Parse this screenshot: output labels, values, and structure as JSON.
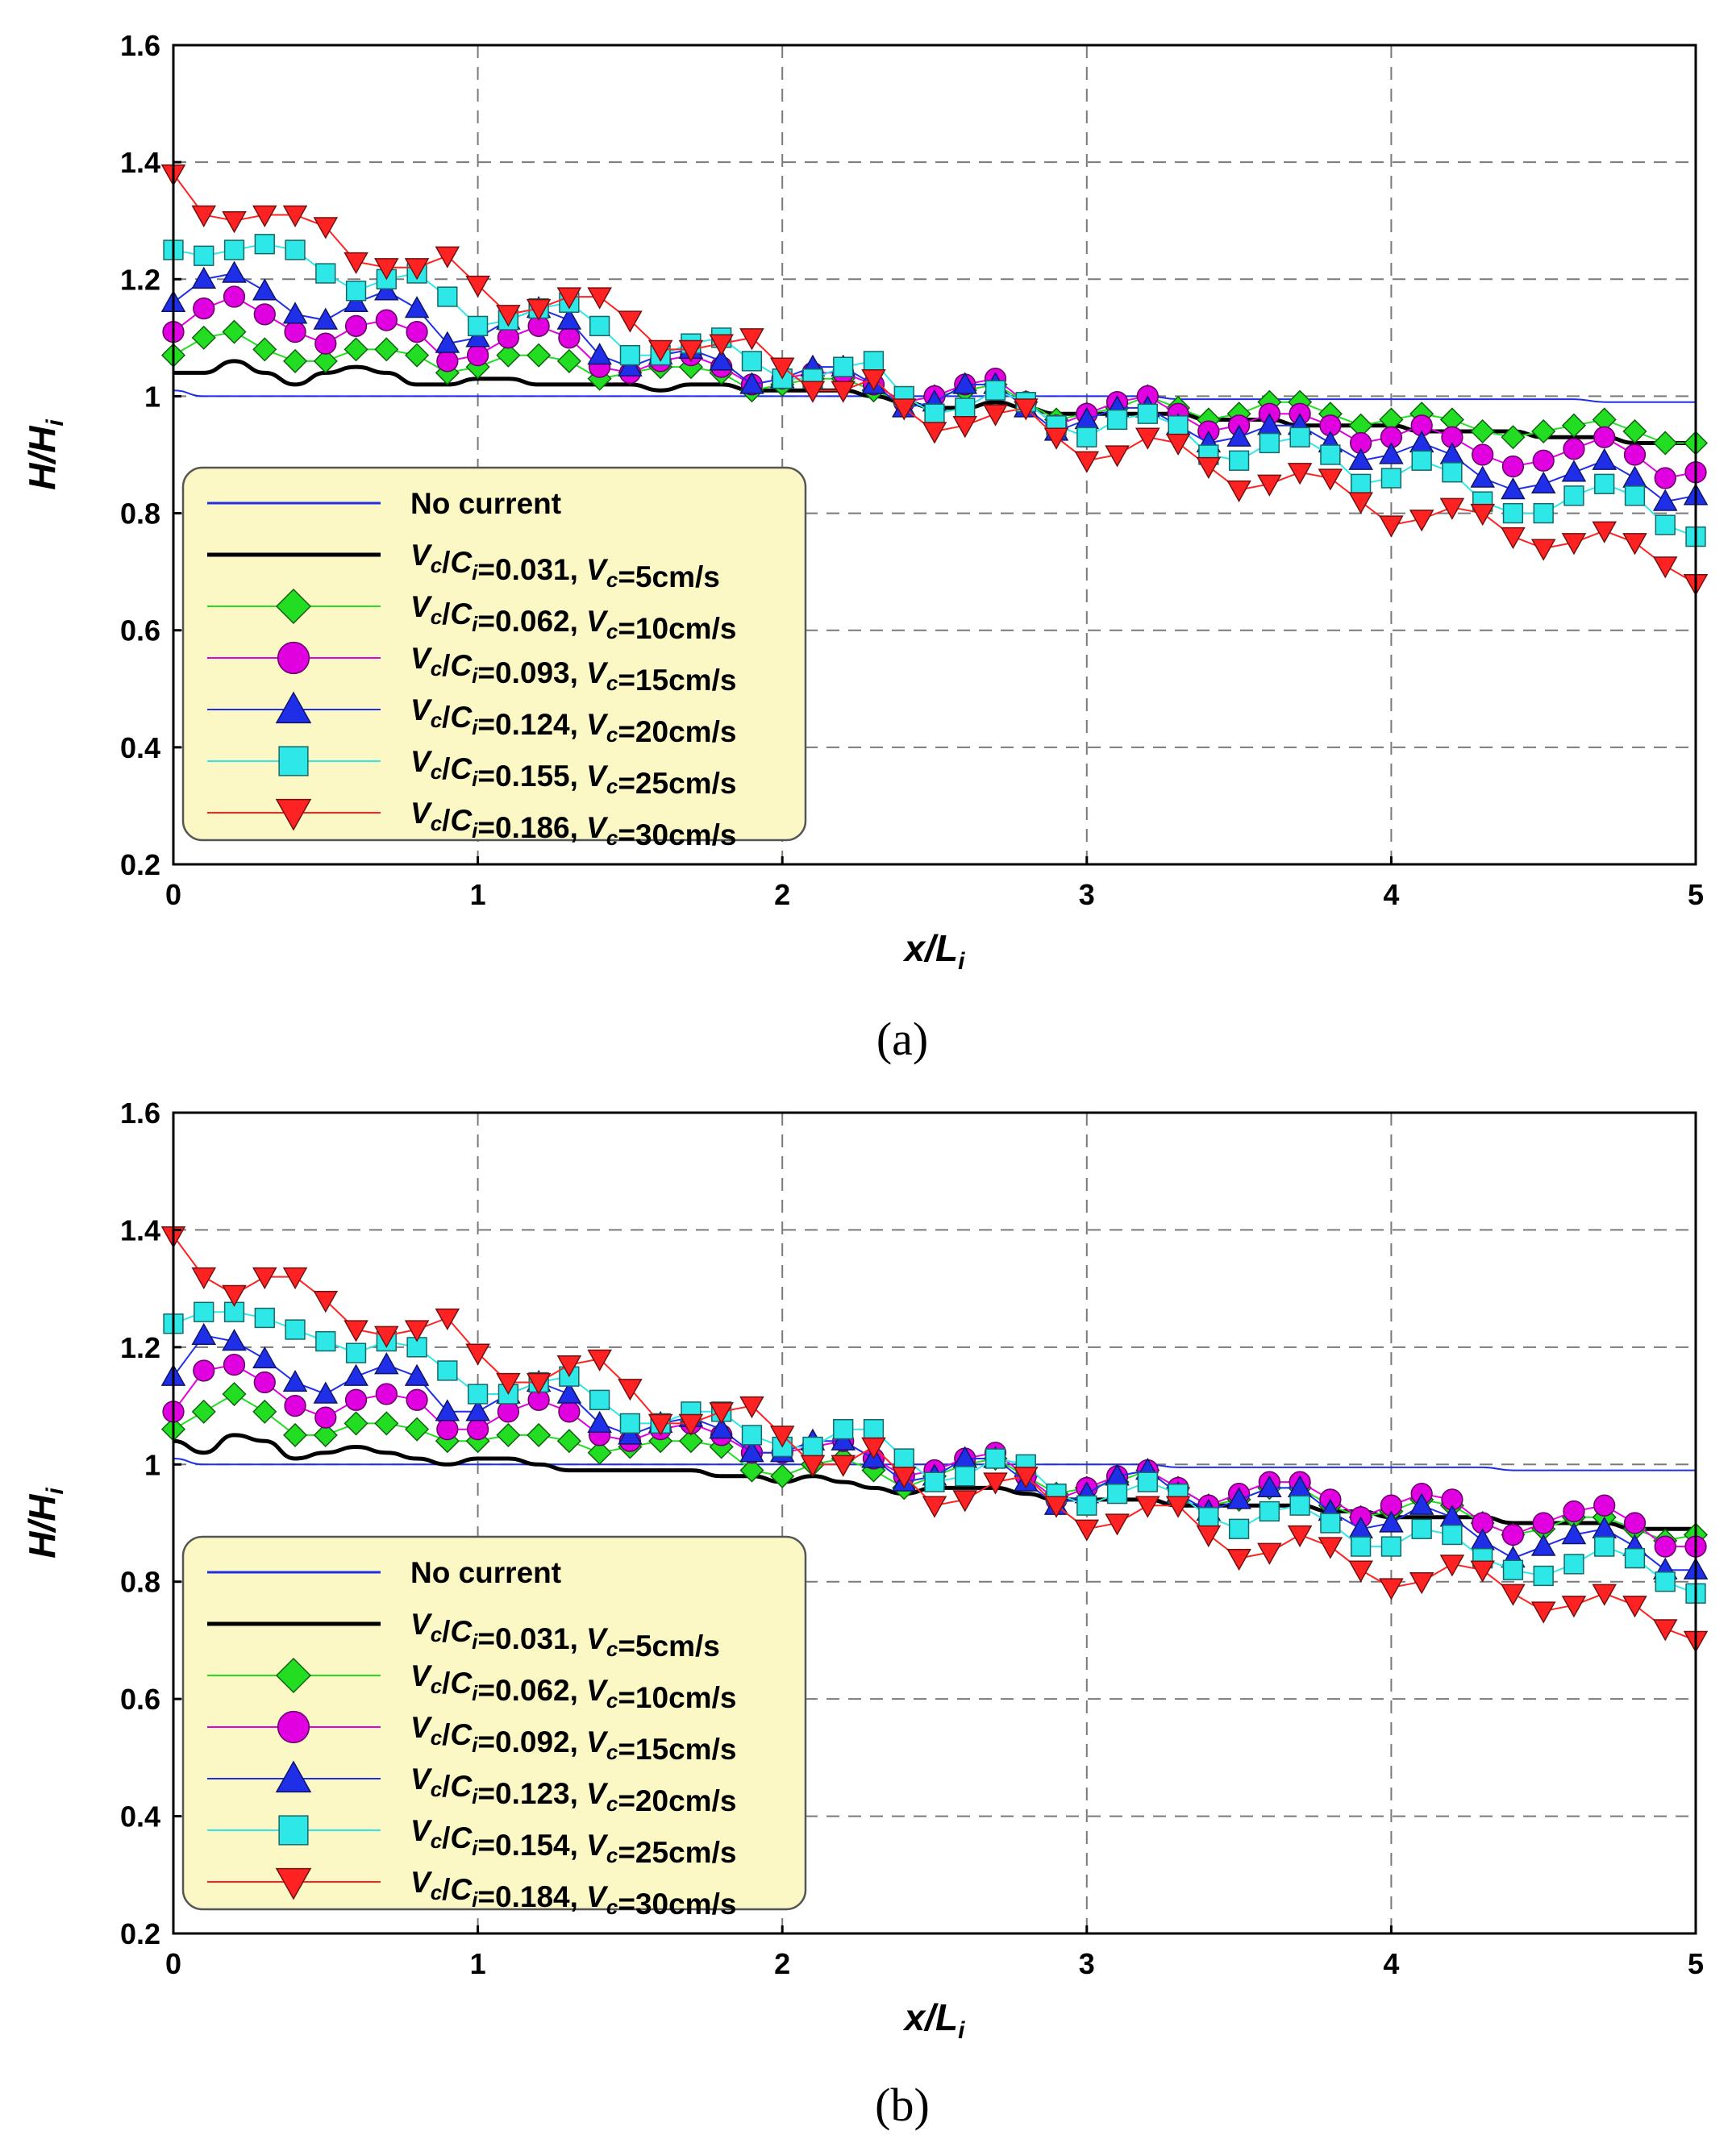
{
  "chart_data": [
    {
      "type": "line",
      "panel_label": "(a)",
      "xlabel": "x/L",
      "xlabel_sub": "i",
      "ylabel": "H/H",
      "ylabel_sub": "i",
      "xlim": [
        0,
        5
      ],
      "ylim": [
        0.2,
        1.6
      ],
      "x_ticks": [
        "0",
        "1",
        "2",
        "3",
        "4",
        "5"
      ],
      "y_ticks": [
        "0.2",
        "0.4",
        "0.6",
        "0.8",
        "1",
        "1.2",
        "1.4",
        "1.6"
      ],
      "grid": true,
      "legend_position": "bottom-left",
      "x": [
        0,
        0.1,
        0.2,
        0.3,
        0.4,
        0.5,
        0.6,
        0.7,
        0.8,
        0.9,
        1.0,
        1.1,
        1.2,
        1.3,
        1.4,
        1.5,
        1.6,
        1.7,
        1.8,
        1.9,
        2.0,
        2.1,
        2.2,
        2.3,
        2.4,
        2.5,
        2.6,
        2.7,
        2.8,
        2.9,
        3.0,
        3.1,
        3.2,
        3.3,
        3.4,
        3.5,
        3.6,
        3.7,
        3.8,
        3.9,
        4.0,
        4.1,
        4.2,
        4.3,
        4.4,
        4.5,
        4.6,
        4.7,
        4.8,
        4.9,
        5.0
      ],
      "series": [
        {
          "name": "No current",
          "color": "#1f2fe8",
          "marker": "none",
          "width": 2,
          "values": [
            1.01,
            1.0,
            1.0,
            1.0,
            1.0,
            1.0,
            1.0,
            1.0,
            1.0,
            1.0,
            1.0,
            1.0,
            1.0,
            1.0,
            1.0,
            1.0,
            1.0,
            1.0,
            1.0,
            1.0,
            1.0,
            1.0,
            1.0,
            1.0,
            1.0,
            1.0,
            1.0,
            1.0,
            1.0,
            1.0,
            1.0,
            1.0,
            1.0,
            0.995,
            0.995,
            0.995,
            0.995,
            0.995,
            0.995,
            0.995,
            0.995,
            0.995,
            0.995,
            0.995,
            0.995,
            0.995,
            0.995,
            0.99,
            0.99,
            0.99,
            0.99
          ]
        },
        {
          "name": "V_c/C_i=0.031, V_c=5cm/s",
          "color": "#000000",
          "marker": "none",
          "width": 5,
          "values": [
            1.04,
            1.04,
            1.06,
            1.04,
            1.02,
            1.04,
            1.05,
            1.04,
            1.02,
            1.02,
            1.03,
            1.03,
            1.02,
            1.02,
            1.02,
            1.02,
            1.01,
            1.02,
            1.02,
            1.01,
            1.01,
            1.01,
            1.01,
            1.0,
            0.99,
            0.98,
            0.98,
            0.99,
            0.98,
            0.97,
            0.97,
            0.97,
            0.97,
            0.97,
            0.96,
            0.96,
            0.96,
            0.95,
            0.95,
            0.95,
            0.95,
            0.94,
            0.94,
            0.94,
            0.94,
            0.93,
            0.93,
            0.93,
            0.92,
            0.92,
            0.92
          ]
        },
        {
          "name": "V_c/C_i=0.062, V_c=10cm/s",
          "color": "#22dd22",
          "marker": "diamond",
          "width": 2,
          "values": [
            1.07,
            1.1,
            1.11,
            1.08,
            1.06,
            1.06,
            1.08,
            1.08,
            1.07,
            1.04,
            1.05,
            1.07,
            1.07,
            1.06,
            1.03,
            1.04,
            1.05,
            1.05,
            1.04,
            1.01,
            1.02,
            1.03,
            1.03,
            1.01,
            0.99,
            1.0,
            1.01,
            1.02,
            0.99,
            0.96,
            0.97,
            0.98,
            1.0,
            0.98,
            0.96,
            0.97,
            0.99,
            0.99,
            0.97,
            0.95,
            0.96,
            0.97,
            0.96,
            0.94,
            0.93,
            0.94,
            0.95,
            0.96,
            0.94,
            0.92,
            0.92
          ]
        },
        {
          "name": "V_c/C_i=0.093, V_c=15cm/s",
          "color": "#e000e0",
          "marker": "circle",
          "width": 2,
          "values": [
            1.11,
            1.15,
            1.17,
            1.14,
            1.11,
            1.09,
            1.12,
            1.13,
            1.11,
            1.06,
            1.07,
            1.1,
            1.12,
            1.1,
            1.05,
            1.04,
            1.06,
            1.07,
            1.05,
            1.02,
            1.03,
            1.04,
            1.04,
            1.02,
            0.99,
            1.0,
            1.02,
            1.03,
            0.99,
            0.95,
            0.97,
            0.99,
            1.0,
            0.97,
            0.94,
            0.95,
            0.97,
            0.97,
            0.95,
            0.92,
            0.93,
            0.95,
            0.93,
            0.9,
            0.88,
            0.89,
            0.91,
            0.93,
            0.9,
            0.86,
            0.87
          ]
        },
        {
          "name": "V_c/C_i=0.124, V_c=20cm/s",
          "color": "#1f2fe8",
          "marker": "triangle-up",
          "width": 2,
          "values": [
            1.16,
            1.2,
            1.21,
            1.18,
            1.14,
            1.13,
            1.16,
            1.18,
            1.15,
            1.09,
            1.1,
            1.13,
            1.15,
            1.13,
            1.07,
            1.05,
            1.07,
            1.08,
            1.06,
            1.02,
            1.03,
            1.05,
            1.05,
            1.02,
            0.98,
            0.99,
            1.02,
            1.02,
            0.98,
            0.94,
            0.96,
            0.98,
            0.98,
            0.95,
            0.92,
            0.93,
            0.95,
            0.95,
            0.92,
            0.89,
            0.9,
            0.92,
            0.9,
            0.86,
            0.84,
            0.85,
            0.87,
            0.89,
            0.86,
            0.82,
            0.83
          ]
        },
        {
          "name": "V_c/C_i=0.155, V_c=25cm/s",
          "color": "#2ee8e8",
          "marker": "square",
          "width": 2,
          "values": [
            1.25,
            1.24,
            1.25,
            1.26,
            1.25,
            1.21,
            1.18,
            1.2,
            1.21,
            1.17,
            1.12,
            1.13,
            1.15,
            1.16,
            1.12,
            1.07,
            1.07,
            1.09,
            1.1,
            1.06,
            1.03,
            1.03,
            1.05,
            1.06,
            1.0,
            0.97,
            0.98,
            1.01,
            0.99,
            0.95,
            0.93,
            0.96,
            0.97,
            0.95,
            0.9,
            0.89,
            0.92,
            0.93,
            0.9,
            0.85,
            0.86,
            0.89,
            0.87,
            0.82,
            0.8,
            0.8,
            0.83,
            0.85,
            0.83,
            0.78,
            0.76
          ]
        },
        {
          "name": "V_c/C_i=0.186, V_c=30cm/s",
          "color": "#ff2222",
          "marker": "triangle-down",
          "width": 2,
          "values": [
            1.38,
            1.31,
            1.3,
            1.31,
            1.31,
            1.29,
            1.23,
            1.22,
            1.22,
            1.24,
            1.19,
            1.14,
            1.15,
            1.17,
            1.17,
            1.13,
            1.08,
            1.08,
            1.09,
            1.1,
            1.05,
            1.01,
            1.01,
            1.03,
            0.98,
            0.94,
            0.95,
            0.97,
            0.98,
            0.93,
            0.89,
            0.9,
            0.93,
            0.92,
            0.88,
            0.84,
            0.85,
            0.87,
            0.86,
            0.82,
            0.78,
            0.79,
            0.81,
            0.8,
            0.76,
            0.74,
            0.75,
            0.77,
            0.75,
            0.71,
            0.68
          ]
        }
      ]
    },
    {
      "type": "line",
      "panel_label": "(b)",
      "xlabel": "x/L",
      "xlabel_sub": "i",
      "ylabel": "H/H",
      "ylabel_sub": "i",
      "xlim": [
        0,
        5
      ],
      "ylim": [
        0.2,
        1.6
      ],
      "x_ticks": [
        "0",
        "1",
        "2",
        "3",
        "4",
        "5"
      ],
      "y_ticks": [
        "0.2",
        "0.4",
        "0.6",
        "0.8",
        "1",
        "1.2",
        "1.4",
        "1.6"
      ],
      "grid": true,
      "legend_position": "bottom-left",
      "x": [
        0,
        0.1,
        0.2,
        0.3,
        0.4,
        0.5,
        0.6,
        0.7,
        0.8,
        0.9,
        1.0,
        1.1,
        1.2,
        1.3,
        1.4,
        1.5,
        1.6,
        1.7,
        1.8,
        1.9,
        2.0,
        2.1,
        2.2,
        2.3,
        2.4,
        2.5,
        2.6,
        2.7,
        2.8,
        2.9,
        3.0,
        3.1,
        3.2,
        3.3,
        3.4,
        3.5,
        3.6,
        3.7,
        3.8,
        3.9,
        4.0,
        4.1,
        4.2,
        4.3,
        4.4,
        4.5,
        4.6,
        4.7,
        4.8,
        4.9,
        5.0
      ],
      "series": [
        {
          "name": "No current",
          "color": "#1f2fe8",
          "marker": "none",
          "width": 2,
          "values": [
            1.01,
            1.0,
            1.0,
            1.0,
            1.0,
            1.0,
            1.0,
            1.0,
            1.0,
            1.0,
            1.0,
            1.0,
            1.0,
            1.0,
            1.0,
            1.0,
            1.0,
            1.0,
            1.0,
            1.0,
            1.0,
            1.0,
            1.0,
            1.0,
            1.0,
            1.0,
            1.0,
            1.0,
            1.0,
            1.0,
            1.0,
            1.0,
            1.0,
            0.995,
            0.995,
            0.995,
            0.995,
            0.995,
            0.995,
            0.995,
            0.995,
            0.995,
            0.995,
            0.995,
            0.99,
            0.99,
            0.99,
            0.99,
            0.99,
            0.99,
            0.99
          ]
        },
        {
          "name": "V_c/C_i=0.031, V_c=5cm/s",
          "color": "#000000",
          "marker": "none",
          "width": 5,
          "values": [
            1.04,
            1.02,
            1.05,
            1.04,
            1.01,
            1.02,
            1.03,
            1.02,
            1.01,
            1.0,
            1.01,
            1.01,
            1.0,
            0.99,
            0.99,
            0.99,
            0.99,
            0.99,
            0.98,
            0.98,
            0.97,
            0.98,
            0.97,
            0.96,
            0.95,
            0.96,
            0.96,
            0.96,
            0.95,
            0.94,
            0.94,
            0.94,
            0.94,
            0.93,
            0.93,
            0.93,
            0.93,
            0.93,
            0.92,
            0.92,
            0.91,
            0.91,
            0.91,
            0.91,
            0.9,
            0.9,
            0.9,
            0.9,
            0.89,
            0.89,
            0.89
          ]
        },
        {
          "name": "V_c/C_i=0.062, V_c=10cm/s",
          "color": "#22dd22",
          "marker": "diamond",
          "width": 2,
          "values": [
            1.06,
            1.09,
            1.12,
            1.09,
            1.05,
            1.05,
            1.07,
            1.07,
            1.06,
            1.04,
            1.04,
            1.05,
            1.05,
            1.04,
            1.02,
            1.03,
            1.04,
            1.04,
            1.03,
            0.99,
            0.98,
            1.0,
            1.01,
            0.99,
            0.96,
            0.98,
            1.0,
            1.01,
            0.98,
            0.95,
            0.96,
            0.97,
            0.99,
            0.96,
            0.93,
            0.94,
            0.96,
            0.96,
            0.93,
            0.91,
            0.92,
            0.94,
            0.93,
            0.9,
            0.88,
            0.89,
            0.91,
            0.91,
            0.89,
            0.87,
            0.88
          ]
        },
        {
          "name": "V_c/C_i=0.092, V_c=15cm/s",
          "color": "#e000e0",
          "marker": "circle",
          "width": 2,
          "values": [
            1.09,
            1.16,
            1.17,
            1.14,
            1.1,
            1.08,
            1.11,
            1.12,
            1.11,
            1.06,
            1.06,
            1.09,
            1.11,
            1.09,
            1.05,
            1.04,
            1.06,
            1.07,
            1.05,
            1.02,
            1.02,
            1.03,
            1.04,
            1.01,
            0.98,
            0.99,
            1.01,
            1.02,
            0.98,
            0.94,
            0.96,
            0.98,
            0.99,
            0.96,
            0.93,
            0.95,
            0.97,
            0.97,
            0.94,
            0.91,
            0.93,
            0.95,
            0.94,
            0.9,
            0.88,
            0.9,
            0.92,
            0.93,
            0.9,
            0.86,
            0.86
          ]
        },
        {
          "name": "V_c/C_i=0.123, V_c=20cm/s",
          "color": "#1f2fe8",
          "marker": "triangle-up",
          "width": 2,
          "values": [
            1.15,
            1.22,
            1.21,
            1.18,
            1.14,
            1.12,
            1.15,
            1.17,
            1.15,
            1.09,
            1.09,
            1.12,
            1.14,
            1.12,
            1.07,
            1.05,
            1.07,
            1.08,
            1.06,
            1.02,
            1.02,
            1.04,
            1.04,
            1.01,
            0.97,
            0.98,
            1.01,
            1.01,
            0.97,
            0.93,
            0.95,
            0.98,
            0.99,
            0.95,
            0.92,
            0.94,
            0.96,
            0.96,
            0.92,
            0.89,
            0.9,
            0.93,
            0.91,
            0.87,
            0.84,
            0.86,
            0.88,
            0.89,
            0.86,
            0.82,
            0.82
          ]
        },
        {
          "name": "V_c/C_i=0.154, V_c=25cm/s",
          "color": "#2ee8e8",
          "marker": "square",
          "width": 2,
          "values": [
            1.24,
            1.26,
            1.26,
            1.25,
            1.23,
            1.21,
            1.19,
            1.21,
            1.2,
            1.16,
            1.12,
            1.12,
            1.14,
            1.15,
            1.11,
            1.07,
            1.07,
            1.09,
            1.09,
            1.05,
            1.03,
            1.03,
            1.06,
            1.06,
            1.01,
            0.97,
            0.98,
            1.01,
            1.0,
            0.95,
            0.93,
            0.95,
            0.97,
            0.95,
            0.91,
            0.89,
            0.92,
            0.93,
            0.9,
            0.86,
            0.86,
            0.89,
            0.88,
            0.84,
            0.82,
            0.81,
            0.83,
            0.86,
            0.84,
            0.8,
            0.78
          ]
        },
        {
          "name": "V_c/C_i=0.184, V_c=30cm/s",
          "color": "#ff2222",
          "marker": "triangle-down",
          "width": 2,
          "values": [
            1.39,
            1.32,
            1.29,
            1.32,
            1.32,
            1.28,
            1.23,
            1.22,
            1.23,
            1.25,
            1.19,
            1.14,
            1.14,
            1.17,
            1.18,
            1.13,
            1.07,
            1.07,
            1.09,
            1.1,
            1.05,
            1.0,
            1.0,
            1.03,
            0.98,
            0.93,
            0.94,
            0.97,
            0.98,
            0.93,
            0.89,
            0.9,
            0.93,
            0.93,
            0.88,
            0.84,
            0.85,
            0.88,
            0.86,
            0.82,
            0.79,
            0.8,
            0.83,
            0.82,
            0.78,
            0.75,
            0.76,
            0.78,
            0.76,
            0.72,
            0.7
          ]
        }
      ]
    }
  ]
}
